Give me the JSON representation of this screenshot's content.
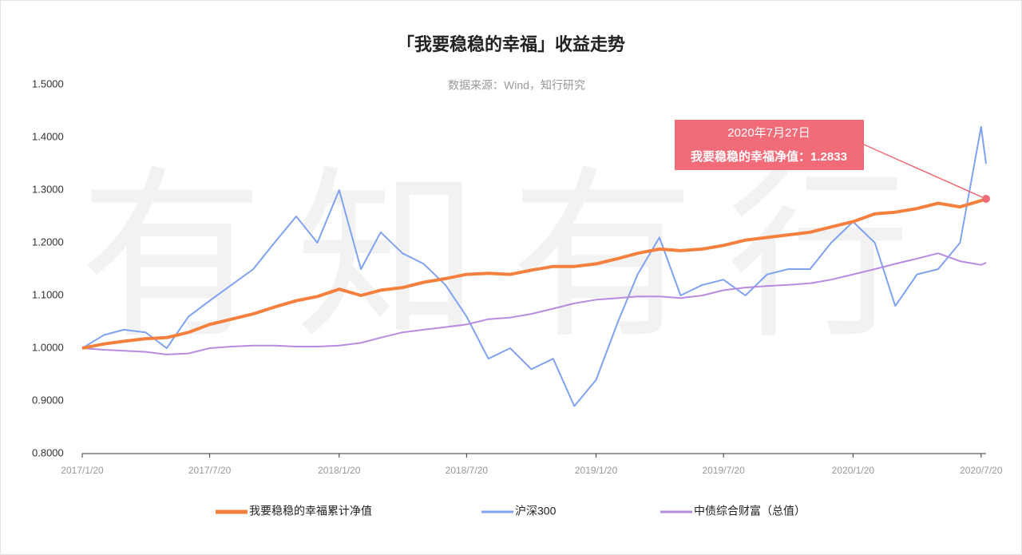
{
  "chart_data": {
    "type": "line",
    "title": "「我要稳稳的幸福」收益走势",
    "subtitle": "数据来源：Wind，知行研究",
    "watermark": "有知有行",
    "x": [
      "2017-01-20",
      "2017-02-20",
      "2017-03-20",
      "2017-04-20",
      "2017-05-20",
      "2017-06-20",
      "2017-07-20",
      "2017-08-20",
      "2017-09-20",
      "2017-10-20",
      "2017-11-20",
      "2017-12-20",
      "2018-01-20",
      "2018-02-20",
      "2018-03-20",
      "2018-04-20",
      "2018-05-20",
      "2018-06-20",
      "2018-07-20",
      "2018-08-20",
      "2018-09-20",
      "2018-10-20",
      "2018-11-20",
      "2018-12-20",
      "2019-01-20",
      "2019-02-20",
      "2019-03-20",
      "2019-04-20",
      "2019-05-20",
      "2019-06-20",
      "2019-07-20",
      "2019-08-20",
      "2019-09-20",
      "2019-10-20",
      "2019-11-20",
      "2019-12-20",
      "2020-01-20",
      "2020-02-20",
      "2020-03-20",
      "2020-04-20",
      "2020-05-20",
      "2020-06-20",
      "2020-07-20",
      "2020-07-27"
    ],
    "xlim": [
      "2017-01-20",
      "2020-07-27"
    ],
    "xticks": [
      {
        "value": "2017-01-20",
        "label": "2017/1/20"
      },
      {
        "value": "2017-07-20",
        "label": "2017/7/20"
      },
      {
        "value": "2018-01-20",
        "label": "2018/1/20"
      },
      {
        "value": "2018-07-20",
        "label": "2018/7/20"
      },
      {
        "value": "2019-01-20",
        "label": "2019/1/20"
      },
      {
        "value": "2019-07-20",
        "label": "2019/7/20"
      },
      {
        "value": "2020-01-20",
        "label": "2020/1/20"
      },
      {
        "value": "2020-07-20",
        "label": "2020/7/20"
      }
    ],
    "ylim": [
      0.8,
      1.5
    ],
    "yticks": [
      {
        "value": 0.8,
        "label": "0.8000"
      },
      {
        "value": 0.9,
        "label": "0.9000"
      },
      {
        "value": 1.0,
        "label": "1.0000"
      },
      {
        "value": 1.1,
        "label": "1.1000"
      },
      {
        "value": 1.2,
        "label": "1.2000"
      },
      {
        "value": 1.3,
        "label": "1.3000"
      },
      {
        "value": 1.4,
        "label": "1.4000"
      },
      {
        "value": 1.5,
        "label": "1.5000"
      }
    ],
    "grid": false,
    "series": [
      {
        "name": "我要稳稳的幸福累计净值",
        "color": "#f5803e",
        "width": 4,
        "values": [
          1.0,
          1.008,
          1.013,
          1.018,
          1.02,
          1.03,
          1.045,
          1.055,
          1.065,
          1.078,
          1.09,
          1.098,
          1.112,
          1.1,
          1.11,
          1.115,
          1.125,
          1.132,
          1.14,
          1.142,
          1.14,
          1.148,
          1.155,
          1.155,
          1.16,
          1.17,
          1.18,
          1.188,
          1.185,
          1.188,
          1.195,
          1.205,
          1.21,
          1.215,
          1.22,
          1.23,
          1.24,
          1.255,
          1.258,
          1.265,
          1.275,
          1.268,
          1.28,
          1.2833
        ]
      },
      {
        "name": "沪深300",
        "color": "#7fa3f2",
        "width": 2,
        "values": [
          1.0,
          1.025,
          1.035,
          1.03,
          1.0,
          1.06,
          1.09,
          1.12,
          1.15,
          1.2,
          1.25,
          1.2,
          1.3,
          1.15,
          1.22,
          1.18,
          1.16,
          1.12,
          1.06,
          0.98,
          1.0,
          0.96,
          0.98,
          0.89,
          0.94,
          1.05,
          1.14,
          1.21,
          1.1,
          1.12,
          1.13,
          1.1,
          1.14,
          1.15,
          1.15,
          1.2,
          1.24,
          1.2,
          1.08,
          1.14,
          1.15,
          1.2,
          1.42,
          1.35
        ]
      },
      {
        "name": "中债综合财富（总值）",
        "color": "#b78ce0",
        "width": 2,
        "values": [
          1.0,
          0.997,
          0.995,
          0.993,
          0.988,
          0.99,
          1.0,
          1.003,
          1.005,
          1.005,
          1.003,
          1.003,
          1.005,
          1.01,
          1.02,
          1.03,
          1.035,
          1.04,
          1.045,
          1.055,
          1.058,
          1.065,
          1.075,
          1.085,
          1.092,
          1.095,
          1.098,
          1.098,
          1.095,
          1.1,
          1.11,
          1.115,
          1.118,
          1.12,
          1.123,
          1.13,
          1.14,
          1.15,
          1.16,
          1.17,
          1.18,
          1.165,
          1.158,
          1.162
        ]
      }
    ],
    "annotation": {
      "date_label": "2020年7月27日",
      "text": "我要稳稳的幸福净值：1.2833",
      "x": "2020-07-27",
      "value": 1.2833,
      "color": "#f26b78"
    }
  }
}
